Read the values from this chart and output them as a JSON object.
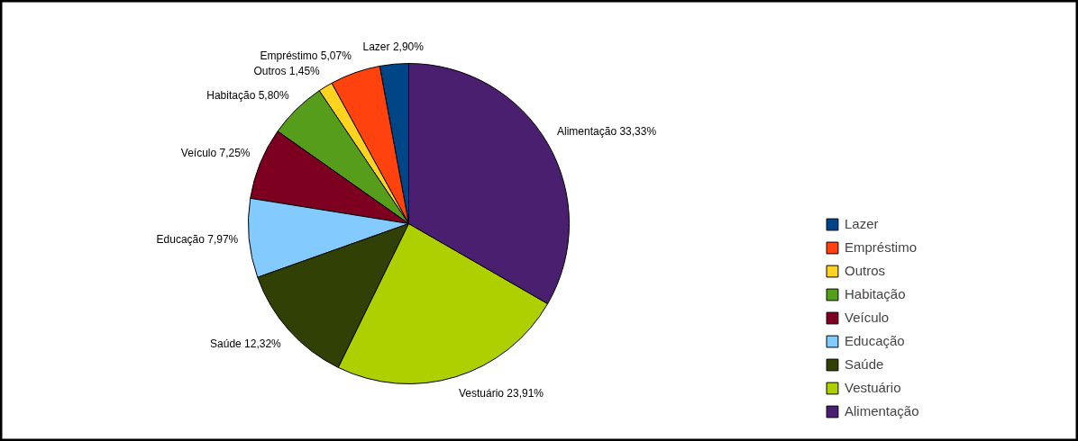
{
  "chart_data": {
    "type": "pie",
    "categories": [
      "Lazer",
      "Empréstimo",
      "Outros",
      "Habitação",
      "Veículo",
      "Educação",
      "Saúde",
      "Vestuário",
      "Alimentação"
    ],
    "values": [
      2.9,
      5.07,
      1.45,
      5.8,
      7.25,
      7.97,
      12.32,
      23.91,
      33.33
    ],
    "colors": [
      "#004586",
      "#ff420e",
      "#ffd320",
      "#579d1c",
      "#7e0021",
      "#83caff",
      "#314004",
      "#aecf00",
      "#4b1f6f"
    ],
    "value_labels": [
      "Lazer 2,90%",
      "Empréstimo 5,07%",
      "Outros 1,45%",
      "Habitação 5,80%",
      "Veículo 7,25%",
      "Educação 7,97%",
      "Saúde 12,32%",
      "Vestuário 23,91%",
      "Alimentação 33,33%"
    ],
    "legend": "right"
  }
}
